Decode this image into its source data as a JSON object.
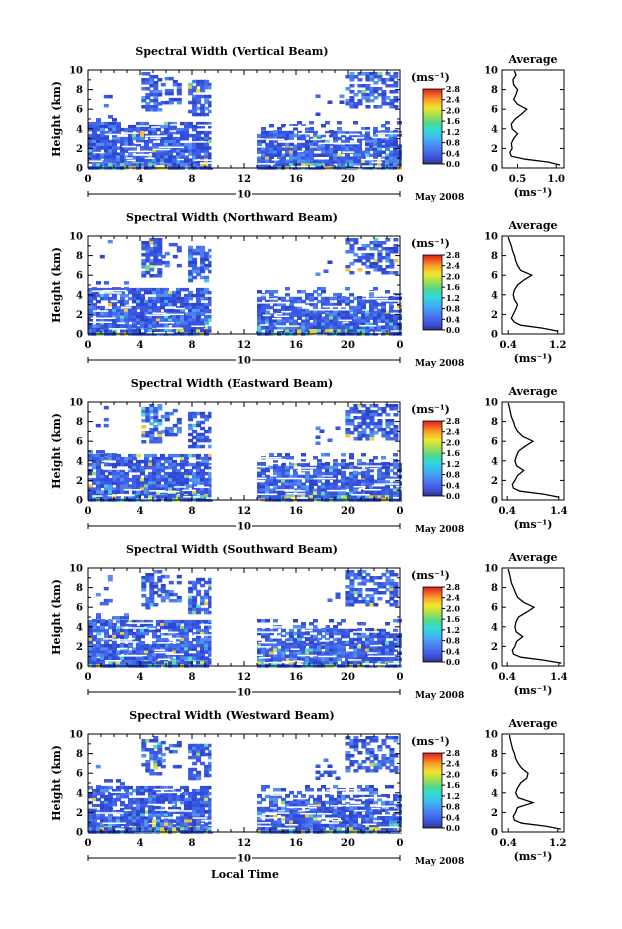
{
  "figure": {
    "xlabel": "Local Time",
    "date_label": "May 2008",
    "units_label": "(ms⁻¹)",
    "avg_xlabel": "(ms⁻¹)",
    "avg_title": "Average"
  },
  "chart_data": [
    {
      "type": "heatmap",
      "title": "Spectral Width (Vertical Beam)",
      "ylabel": "Height (km)",
      "xlabel": "Local Time",
      "x_ticks": [
        "0",
        "4",
        "8",
        "12",
        "16",
        "20",
        "0"
      ],
      "xlim": [
        0,
        24
      ],
      "day_marker": "10",
      "y_ticks": [
        "0",
        "2",
        "4",
        "6",
        "8",
        "10"
      ],
      "ylim": [
        0,
        10
      ],
      "colorbar_ticks": [
        "0.0",
        "0.4",
        "0.8",
        "1.2",
        "1.6",
        "2.0",
        "2.4",
        "2.8"
      ],
      "colorbar_range": [
        0,
        2.8
      ],
      "data_gap_hours": [
        9.5,
        13
      ],
      "profile": {
        "title": "Average",
        "xlabel": "(ms⁻¹)",
        "x_ticks": [
          "0.5",
          "1.0"
        ],
        "xlim": [
          0.3,
          1.1
        ],
        "height": [
          0.3,
          0.6,
          0.9,
          1.2,
          1.6,
          2.0,
          2.5,
          3.0,
          3.5,
          4.0,
          4.5,
          5.0,
          5.5,
          6.0,
          6.5,
          7.0,
          7.5,
          8.0,
          8.5,
          9.0,
          9.5,
          9.9
        ],
        "value": [
          1.05,
          0.9,
          0.6,
          0.42,
          0.4,
          0.43,
          0.42,
          0.45,
          0.5,
          0.43,
          0.42,
          0.47,
          0.55,
          0.62,
          0.5,
          0.45,
          0.48,
          0.5,
          0.45,
          0.44,
          0.48,
          0.46
        ]
      }
    },
    {
      "type": "heatmap",
      "title": "Spectral Width (Northward Beam)",
      "ylabel": "Height (km)",
      "xlabel": "Local Time",
      "x_ticks": [
        "0",
        "4",
        "8",
        "12",
        "16",
        "20",
        "0"
      ],
      "xlim": [
        0,
        24
      ],
      "day_marker": "10",
      "y_ticks": [
        "0",
        "2",
        "4",
        "6",
        "8",
        "10"
      ],
      "ylim": [
        0,
        10
      ],
      "colorbar_ticks": [
        "0.0",
        "0.4",
        "0.8",
        "1.2",
        "1.6",
        "2.0",
        "2.4",
        "2.8"
      ],
      "colorbar_range": [
        0,
        2.8
      ],
      "data_gap_hours": [
        9.5,
        13
      ],
      "profile": {
        "title": "Average",
        "xlabel": "(ms⁻¹)",
        "x_ticks": [
          "0.4",
          "1.2"
        ],
        "xlim": [
          0.3,
          1.3
        ],
        "height": [
          0.3,
          0.6,
          0.9,
          1.2,
          1.6,
          2.0,
          2.5,
          3.0,
          3.5,
          4.0,
          4.5,
          5.0,
          5.5,
          6.0,
          6.5,
          7.0,
          7.5,
          8.0,
          8.5,
          9.0,
          9.5,
          9.9
        ],
        "value": [
          1.2,
          0.95,
          0.6,
          0.5,
          0.45,
          0.48,
          0.52,
          0.55,
          0.5,
          0.48,
          0.5,
          0.55,
          0.65,
          0.78,
          0.6,
          0.55,
          0.52,
          0.5,
          0.47,
          0.45,
          0.42,
          0.4
        ]
      }
    },
    {
      "type": "heatmap",
      "title": "Spectral Width (Eastward Beam)",
      "ylabel": "Height (km)",
      "xlabel": "Local Time",
      "x_ticks": [
        "0",
        "4",
        "8",
        "12",
        "16",
        "20",
        "0"
      ],
      "xlim": [
        0,
        24
      ],
      "day_marker": "10",
      "y_ticks": [
        "0",
        "2",
        "4",
        "6",
        "8",
        "10"
      ],
      "ylim": [
        0,
        10
      ],
      "colorbar_ticks": [
        "0.0",
        "0.4",
        "0.8",
        "1.2",
        "1.6",
        "2.0",
        "2.4",
        "2.8"
      ],
      "colorbar_range": [
        0,
        2.8
      ],
      "data_gap_hours": [
        9.5,
        13
      ],
      "profile": {
        "title": "Average",
        "xlabel": "(ms⁻¹)",
        "x_ticks": [
          "0.4",
          "1.4"
        ],
        "xlim": [
          0.3,
          1.5
        ],
        "height": [
          0.3,
          0.6,
          0.9,
          1.2,
          1.6,
          2.0,
          2.5,
          3.0,
          3.5,
          4.0,
          4.5,
          5.0,
          5.5,
          6.0,
          6.5,
          7.0,
          7.5,
          8.0,
          8.5,
          9.0,
          9.5,
          9.9
        ],
        "value": [
          1.4,
          1.1,
          0.65,
          0.52,
          0.5,
          0.55,
          0.6,
          0.72,
          0.58,
          0.55,
          0.58,
          0.62,
          0.75,
          0.9,
          0.7,
          0.6,
          0.55,
          0.52,
          0.48,
          0.46,
          0.44,
          0.42
        ]
      }
    },
    {
      "type": "heatmap",
      "title": "Spectral Width (Southward Beam)",
      "ylabel": "Height (km)",
      "xlabel": "Local Time",
      "x_ticks": [
        "0",
        "4",
        "8",
        "12",
        "16",
        "20",
        "0"
      ],
      "xlim": [
        0,
        24
      ],
      "day_marker": "10",
      "y_ticks": [
        "0",
        "2",
        "4",
        "6",
        "8",
        "10"
      ],
      "ylim": [
        0,
        10
      ],
      "colorbar_ticks": [
        "0.0",
        "0.4",
        "0.8",
        "1.2",
        "1.6",
        "2.0",
        "2.4",
        "2.8"
      ],
      "colorbar_range": [
        0,
        2.8
      ],
      "data_gap_hours": [
        9.5,
        13
      ],
      "profile": {
        "title": "Average",
        "xlabel": "(ms⁻¹)",
        "x_ticks": [
          "0.4",
          "1.4"
        ],
        "xlim": [
          0.3,
          1.5
        ],
        "height": [
          0.3,
          0.6,
          0.9,
          1.2,
          1.6,
          2.0,
          2.5,
          3.0,
          3.5,
          4.0,
          4.5,
          5.0,
          5.5,
          6.0,
          6.5,
          7.0,
          7.5,
          8.0,
          8.5,
          9.0,
          9.5,
          9.9
        ],
        "value": [
          1.45,
          1.1,
          0.66,
          0.52,
          0.5,
          0.55,
          0.58,
          0.7,
          0.57,
          0.55,
          0.57,
          0.62,
          0.78,
          0.92,
          0.72,
          0.6,
          0.56,
          0.52,
          0.48,
          0.46,
          0.44,
          0.42
        ]
      }
    },
    {
      "type": "heatmap",
      "title": "Spectral Width (Westward Beam)",
      "ylabel": "Height (km)",
      "xlabel": "Local Time",
      "x_ticks": [
        "0",
        "4",
        "8",
        "12",
        "16",
        "20",
        "0"
      ],
      "xlim": [
        0,
        24
      ],
      "day_marker": "10",
      "y_ticks": [
        "0",
        "2",
        "4",
        "6",
        "8",
        "10"
      ],
      "ylim": [
        0,
        10
      ],
      "colorbar_ticks": [
        "0.0",
        "0.4",
        "0.8",
        "1.2",
        "1.6",
        "2.0",
        "2.4",
        "2.8"
      ],
      "colorbar_range": [
        0,
        2.8
      ],
      "data_gap_hours": [
        9.5,
        13
      ],
      "profile": {
        "title": "Average",
        "xlabel": "(ms⁻¹)",
        "x_ticks": [
          "0.4",
          "1.2"
        ],
        "xlim": [
          0.3,
          1.3
        ],
        "height": [
          0.3,
          0.6,
          0.9,
          1.2,
          1.6,
          2.0,
          2.5,
          3.0,
          3.5,
          4.0,
          4.5,
          5.0,
          5.5,
          6.0,
          6.5,
          7.0,
          7.5,
          8.0,
          8.5,
          9.0,
          9.5,
          9.9
        ],
        "value": [
          1.25,
          1.0,
          0.62,
          0.5,
          0.48,
          0.52,
          0.55,
          0.8,
          0.56,
          0.52,
          0.55,
          0.6,
          0.7,
          0.72,
          0.62,
          0.56,
          0.52,
          0.5,
          0.47,
          0.45,
          0.43,
          0.42
        ]
      }
    }
  ]
}
